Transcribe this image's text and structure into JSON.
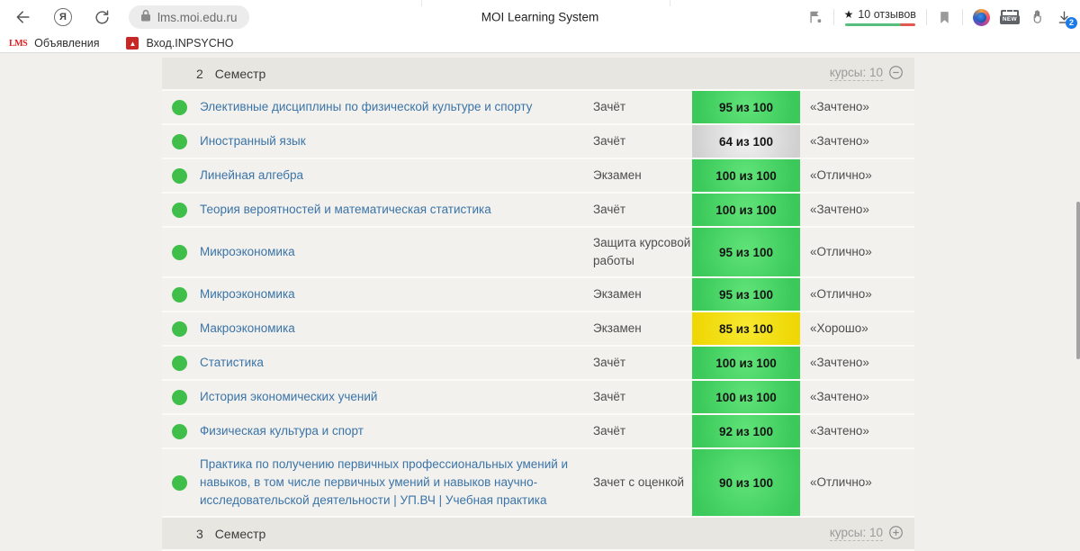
{
  "browser": {
    "url": "lms.moi.edu.ru",
    "page_title": "MOI Learning System",
    "reviews": {
      "star": "★",
      "label": "10 отзывов"
    },
    "new_badge_label": "NEW",
    "download_count": "2",
    "bookmarks": [
      {
        "icon_text": "LMS",
        "label": "Объявления"
      },
      {
        "icon_glyph": "▲",
        "label": "Вход.INPSYCHO"
      }
    ]
  },
  "table": {
    "header": {
      "number": "2",
      "label": "Семестр",
      "courses": "курсы: 10"
    },
    "footer": {
      "number": "3",
      "label": "Семестр",
      "courses": "курсы: 10"
    },
    "rows": [
      {
        "name": "Элективные дисциплины по физической культуре и спорту",
        "exam": "Зачёт",
        "score": "95 из 100",
        "grade": "«Зачтено»",
        "badge": "green"
      },
      {
        "name": "Иностранный язык",
        "exam": "Зачёт",
        "score": "64 из 100",
        "grade": "«Зачтено»",
        "badge": "gray"
      },
      {
        "name": "Линейная алгебра",
        "exam": "Экзамен",
        "score": "100 из 100",
        "grade": "«Отлично»",
        "badge": "green"
      },
      {
        "name": "Теория вероятностей и математическая статистика",
        "exam": "Зачёт",
        "score": "100 из 100",
        "grade": "«Зачтено»",
        "badge": "green"
      },
      {
        "name": "Микроэкономика",
        "exam": "Защита курсовой работы",
        "score": "95 из 100",
        "grade": "«Отлично»",
        "badge": "green"
      },
      {
        "name": "Микроэкономика",
        "exam": "Экзамен",
        "score": "95 из 100",
        "grade": "«Отлично»",
        "badge": "green"
      },
      {
        "name": "Макроэкономика",
        "exam": "Экзамен",
        "score": "85 из 100",
        "grade": "«Хорошо»",
        "badge": "yellow"
      },
      {
        "name": "Статистика",
        "exam": "Зачёт",
        "score": "100 из 100",
        "grade": "«Зачтено»",
        "badge": "green"
      },
      {
        "name": "История экономических учений",
        "exam": "Зачёт",
        "score": "100 из 100",
        "grade": "«Зачтено»",
        "badge": "green"
      },
      {
        "name": "Физическая культура и спорт",
        "exam": "Зачёт",
        "score": "92 из 100",
        "grade": "«Зачтено»",
        "badge": "green"
      },
      {
        "name": "Практика по получению первичных профессиональных умений и навыков, в том числе первичных умений и навыков научно-исследовательской деятельности | УП.ВЧ | Учебная практика",
        "exam": "Зачет с оценкой",
        "score": "90 из 100",
        "grade": "«Отлично»",
        "badge": "green"
      }
    ]
  },
  "colors": {
    "badge_green": "#3bc95a",
    "badge_gray": "#d0d0d0",
    "badge_yellow": "#eed703",
    "status_dot_green": "#3fbf4a",
    "link_blue": "#3b74a8",
    "review_bar_green": "#57bf7d",
    "review_bar_red": "#e4574e",
    "page_background": "#f1f0ec",
    "semester_bar": "#e8e6e1"
  }
}
